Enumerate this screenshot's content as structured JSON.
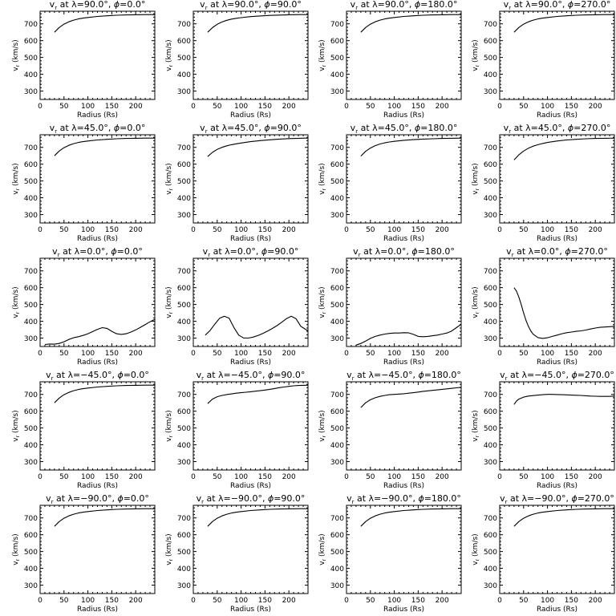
{
  "figure": {
    "ylabel_main": "v",
    "ylabel_sub": "r",
    "ylabel_rest": " (km/s)",
    "xlabel": "Radius (Rs)"
  },
  "colors": {
    "line": "#000000",
    "axis": "#000000",
    "background": "#ffffff"
  },
  "chart_data": [
    {
      "type": "line",
      "row": 0,
      "col": 0,
      "title": {
        "pre": "v",
        "sub": "r",
        "mid": " at λ=90.0°, ",
        "phi": "ϕ",
        "post": "=0.0°"
      },
      "xlim": [
        0,
        240
      ],
      "ylim": [
        250,
        775
      ],
      "xticks": [
        0,
        50,
        100,
        150,
        200
      ],
      "yticks": [
        300,
        400,
        500,
        600,
        700
      ],
      "x": [
        30,
        40,
        50,
        60,
        70,
        80,
        90,
        100,
        120,
        140,
        160,
        180,
        200,
        220,
        240
      ],
      "y": [
        650,
        678,
        698,
        712,
        722,
        729,
        734,
        738,
        744,
        748,
        751,
        753,
        754,
        755,
        755
      ]
    },
    {
      "type": "line",
      "row": 0,
      "col": 1,
      "title": {
        "pre": "v",
        "sub": "r",
        "mid": " at λ=90.0°, ",
        "phi": "ϕ",
        "post": "=90.0°"
      },
      "xlim": [
        0,
        240
      ],
      "ylim": [
        250,
        775
      ],
      "xticks": [
        0,
        50,
        100,
        150,
        200
      ],
      "yticks": [
        300,
        400,
        500,
        600,
        700
      ],
      "x": [
        30,
        40,
        50,
        60,
        70,
        80,
        90,
        100,
        120,
        140,
        160,
        180,
        200,
        220,
        240
      ],
      "y": [
        650,
        677,
        697,
        711,
        721,
        728,
        733,
        737,
        743,
        747,
        750,
        752,
        754,
        755,
        755
      ]
    },
    {
      "type": "line",
      "row": 0,
      "col": 2,
      "title": {
        "pre": "v",
        "sub": "r",
        "mid": " at λ=90.0°, ",
        "phi": "ϕ",
        "post": "=180.0°"
      },
      "xlim": [
        0,
        240
      ],
      "ylim": [
        250,
        775
      ],
      "xticks": [
        0,
        50,
        100,
        150,
        200
      ],
      "yticks": [
        300,
        400,
        500,
        600,
        700
      ],
      "x": [
        30,
        40,
        50,
        60,
        70,
        80,
        90,
        100,
        120,
        140,
        160,
        180,
        200,
        220,
        240
      ],
      "y": [
        650,
        678,
        698,
        712,
        722,
        729,
        734,
        738,
        744,
        748,
        751,
        753,
        754,
        755,
        755
      ]
    },
    {
      "type": "line",
      "row": 0,
      "col": 3,
      "title": {
        "pre": "v",
        "sub": "r",
        "mid": " at λ=90.0°, ",
        "phi": "ϕ",
        "post": "=270.0°"
      },
      "xlim": [
        0,
        240
      ],
      "ylim": [
        250,
        775
      ],
      "xticks": [
        0,
        50,
        100,
        150,
        200
      ],
      "yticks": [
        300,
        400,
        500,
        600,
        700
      ],
      "x": [
        30,
        40,
        50,
        60,
        70,
        80,
        90,
        100,
        120,
        140,
        160,
        180,
        200,
        220,
        240
      ],
      "y": [
        650,
        678,
        698,
        712,
        722,
        729,
        734,
        738,
        744,
        748,
        751,
        753,
        754,
        755,
        755
      ]
    },
    {
      "type": "line",
      "row": 1,
      "col": 0,
      "title": {
        "pre": "v",
        "sub": "r",
        "mid": " at λ=45.0°, ",
        "phi": "ϕ",
        "post": "=0.0°"
      },
      "xlim": [
        0,
        240
      ],
      "ylim": [
        250,
        775
      ],
      "xticks": [
        0,
        50,
        100,
        150,
        200
      ],
      "yticks": [
        300,
        400,
        500,
        600,
        700
      ],
      "x": [
        30,
        40,
        50,
        60,
        70,
        80,
        90,
        100,
        120,
        140,
        160,
        180,
        200,
        220,
        240
      ],
      "y": [
        650,
        678,
        698,
        712,
        722,
        729,
        734,
        738,
        744,
        748,
        751,
        753,
        754,
        755,
        755
      ]
    },
    {
      "type": "line",
      "row": 1,
      "col": 1,
      "title": {
        "pre": "v",
        "sub": "r",
        "mid": " at λ=45.0°, ",
        "phi": "ϕ",
        "post": "=90.0°"
      },
      "xlim": [
        0,
        240
      ],
      "ylim": [
        250,
        775
      ],
      "xticks": [
        0,
        50,
        100,
        150,
        200
      ],
      "yticks": [
        300,
        400,
        500,
        600,
        700
      ],
      "x": [
        30,
        40,
        50,
        60,
        70,
        80,
        90,
        100,
        120,
        140,
        160,
        180,
        200,
        220,
        240
      ],
      "y": [
        645,
        670,
        688,
        700,
        709,
        716,
        721,
        726,
        734,
        740,
        745,
        749,
        752,
        754,
        755
      ]
    },
    {
      "type": "line",
      "row": 1,
      "col": 2,
      "title": {
        "pre": "v",
        "sub": "r",
        "mid": " at λ=45.0°, ",
        "phi": "ϕ",
        "post": "=180.0°"
      },
      "xlim": [
        0,
        240
      ],
      "ylim": [
        250,
        775
      ],
      "xticks": [
        0,
        50,
        100,
        150,
        200
      ],
      "yticks": [
        300,
        400,
        500,
        600,
        700
      ],
      "x": [
        30,
        40,
        50,
        60,
        70,
        80,
        90,
        100,
        120,
        140,
        160,
        180,
        200,
        220,
        240
      ],
      "y": [
        648,
        676,
        696,
        710,
        720,
        727,
        732,
        736,
        742,
        746,
        749,
        751,
        753,
        754,
        755
      ]
    },
    {
      "type": "line",
      "row": 1,
      "col": 3,
      "title": {
        "pre": "v",
        "sub": "r",
        "mid": " at λ=45.0°, ",
        "phi": "ϕ",
        "post": "=270.0°"
      },
      "xlim": [
        0,
        240
      ],
      "ylim": [
        250,
        775
      ],
      "xticks": [
        0,
        50,
        100,
        150,
        200
      ],
      "yticks": [
        300,
        400,
        500,
        600,
        700
      ],
      "x": [
        30,
        40,
        50,
        60,
        70,
        80,
        90,
        100,
        120,
        140,
        160,
        180,
        200,
        220,
        240
      ],
      "y": [
        625,
        655,
        678,
        695,
        707,
        716,
        723,
        729,
        738,
        744,
        748,
        751,
        753,
        754,
        755
      ]
    },
    {
      "type": "line",
      "row": 2,
      "col": 0,
      "title": {
        "pre": "v",
        "sub": "r",
        "mid": " at λ=0.0°, ",
        "phi": "ϕ",
        "post": "=0.0°"
      },
      "xlim": [
        0,
        240
      ],
      "ylim": [
        250,
        775
      ],
      "xticks": [
        0,
        50,
        100,
        150,
        200
      ],
      "yticks": [
        300,
        400,
        500,
        600,
        700
      ],
      "x": [
        10,
        20,
        30,
        40,
        50,
        60,
        70,
        80,
        90,
        100,
        110,
        120,
        130,
        140,
        150,
        160,
        170,
        180,
        190,
        200,
        210,
        220,
        230,
        240
      ],
      "y": [
        262,
        265,
        264,
        268,
        278,
        292,
        302,
        308,
        316,
        326,
        339,
        352,
        362,
        358,
        340,
        326,
        322,
        326,
        336,
        349,
        364,
        381,
        397,
        412
      ]
    },
    {
      "type": "line",
      "row": 2,
      "col": 1,
      "title": {
        "pre": "v",
        "sub": "r",
        "mid": " at λ=0.0°, ",
        "phi": "ϕ",
        "post": "=90.0°"
      },
      "xlim": [
        0,
        240
      ],
      "ylim": [
        250,
        775
      ],
      "xticks": [
        0,
        50,
        100,
        150,
        200
      ],
      "yticks": [
        300,
        400,
        500,
        600,
        700
      ],
      "x": [
        25,
        35,
        45,
        55,
        65,
        75,
        85,
        95,
        105,
        115,
        125,
        135,
        145,
        155,
        165,
        175,
        185,
        195,
        205,
        215,
        225,
        235,
        240
      ],
      "y": [
        318,
        345,
        383,
        418,
        430,
        418,
        363,
        318,
        301,
        300,
        306,
        315,
        327,
        341,
        357,
        374,
        394,
        416,
        430,
        415,
        370,
        352,
        342
      ]
    },
    {
      "type": "line",
      "row": 2,
      "col": 2,
      "title": {
        "pre": "v",
        "sub": "r",
        "mid": " at λ=0.0°, ",
        "phi": "ϕ",
        "post": "=180.0°"
      },
      "xlim": [
        0,
        240
      ],
      "ylim": [
        250,
        775
      ],
      "xticks": [
        0,
        50,
        100,
        150,
        200
      ],
      "yticks": [
        300,
        400,
        500,
        600,
        700
      ],
      "x": [
        20,
        30,
        40,
        50,
        60,
        70,
        80,
        90,
        100,
        110,
        120,
        130,
        140,
        150,
        160,
        170,
        180,
        190,
        200,
        210,
        220,
        230,
        240
      ],
      "y": [
        258,
        268,
        282,
        298,
        310,
        318,
        324,
        328,
        330,
        330,
        332,
        331,
        322,
        310,
        308,
        310,
        314,
        318,
        324,
        330,
        342,
        362,
        382
      ]
    },
    {
      "type": "line",
      "row": 2,
      "col": 3,
      "title": {
        "pre": "v",
        "sub": "r",
        "mid": " at λ=0.0°, ",
        "phi": "ϕ",
        "post": "=270.0°"
      },
      "xlim": [
        0,
        240
      ],
      "ylim": [
        250,
        775
      ],
      "xticks": [
        0,
        50,
        100,
        150,
        200
      ],
      "yticks": [
        300,
        400,
        500,
        600,
        700
      ],
      "x": [
        30,
        35,
        40,
        45,
        50,
        55,
        60,
        65,
        70,
        80,
        90,
        100,
        110,
        120,
        130,
        140,
        150,
        160,
        170,
        180,
        190,
        200,
        210,
        220,
        230,
        240
      ],
      "y": [
        600,
        580,
        545,
        500,
        450,
        405,
        370,
        343,
        323,
        303,
        298,
        302,
        310,
        318,
        326,
        332,
        336,
        340,
        343,
        348,
        354,
        360,
        364,
        366,
        368,
        370
      ]
    },
    {
      "type": "line",
      "row": 3,
      "col": 0,
      "title": {
        "pre": "v",
        "sub": "r",
        "mid": " at λ=−45.0°, ",
        "phi": "ϕ",
        "post": "=0.0°"
      },
      "xlim": [
        0,
        240
      ],
      "ylim": [
        250,
        775
      ],
      "xticks": [
        0,
        50,
        100,
        150,
        200
      ],
      "yticks": [
        300,
        400,
        500,
        600,
        700
      ],
      "x": [
        30,
        40,
        50,
        60,
        70,
        80,
        90,
        100,
        120,
        140,
        160,
        180,
        200,
        220,
        240
      ],
      "y": [
        650,
        678,
        698,
        712,
        722,
        729,
        734,
        738,
        744,
        748,
        751,
        753,
        754,
        755,
        755
      ]
    },
    {
      "type": "line",
      "row": 3,
      "col": 1,
      "title": {
        "pre": "v",
        "sub": "r",
        "mid": " at λ=−45.0°, ",
        "phi": "ϕ",
        "post": "=90.0°"
      },
      "xlim": [
        0,
        240
      ],
      "ylim": [
        250,
        775
      ],
      "xticks": [
        0,
        50,
        100,
        150,
        200
      ],
      "yticks": [
        300,
        400,
        500,
        600,
        700
      ],
      "x": [
        30,
        40,
        50,
        60,
        70,
        80,
        90,
        100,
        110,
        120,
        130,
        140,
        150,
        160,
        170,
        180,
        190,
        200,
        210,
        220,
        230,
        240
      ],
      "y": [
        645,
        672,
        686,
        694,
        699,
        703,
        707,
        710,
        713,
        716,
        719,
        722,
        726,
        730,
        735,
        740,
        744,
        748,
        751,
        753,
        754,
        755
      ]
    },
    {
      "type": "line",
      "row": 3,
      "col": 2,
      "title": {
        "pre": "v",
        "sub": "r",
        "mid": " at λ=−45.0°, ",
        "phi": "ϕ",
        "post": "=180.0°"
      },
      "xlim": [
        0,
        240
      ],
      "ylim": [
        250,
        775
      ],
      "xticks": [
        0,
        50,
        100,
        150,
        200
      ],
      "yticks": [
        300,
        400,
        500,
        600,
        700
      ],
      "x": [
        30,
        40,
        50,
        60,
        70,
        80,
        90,
        100,
        110,
        120,
        130,
        140,
        150,
        160,
        170,
        180,
        190,
        200,
        210,
        220,
        230,
        240
      ],
      "y": [
        622,
        650,
        668,
        680,
        688,
        694,
        698,
        700,
        702,
        704,
        707,
        710,
        714,
        718,
        721,
        724,
        727,
        730,
        733,
        736,
        739,
        742
      ]
    },
    {
      "type": "line",
      "row": 3,
      "col": 3,
      "title": {
        "pre": "v",
        "sub": "r",
        "mid": " at λ=−45.0°, ",
        "phi": "ϕ",
        "post": "=270.0°"
      },
      "xlim": [
        0,
        240
      ],
      "ylim": [
        250,
        775
      ],
      "xticks": [
        0,
        50,
        100,
        150,
        200
      ],
      "yticks": [
        300,
        400,
        500,
        600,
        700
      ],
      "x": [
        30,
        35,
        40,
        50,
        60,
        70,
        80,
        90,
        100,
        110,
        120,
        130,
        140,
        150,
        160,
        170,
        180,
        190,
        200,
        210,
        220,
        230,
        240
      ],
      "y": [
        640,
        660,
        672,
        684,
        690,
        693,
        696,
        698,
        700,
        700,
        699,
        698,
        697,
        696,
        695,
        694,
        692,
        690,
        689,
        688,
        688,
        688,
        690
      ]
    },
    {
      "type": "line",
      "row": 4,
      "col": 0,
      "title": {
        "pre": "v",
        "sub": "r",
        "mid": " at λ=−90.0°, ",
        "phi": "ϕ",
        "post": "=0.0°"
      },
      "xlim": [
        0,
        240
      ],
      "ylim": [
        250,
        775
      ],
      "xticks": [
        0,
        50,
        100,
        150,
        200
      ],
      "yticks": [
        300,
        400,
        500,
        600,
        700
      ],
      "x": [
        30,
        40,
        50,
        60,
        70,
        80,
        90,
        100,
        120,
        140,
        160,
        180,
        200,
        220,
        240
      ],
      "y": [
        650,
        678,
        698,
        712,
        722,
        729,
        734,
        738,
        744,
        748,
        751,
        753,
        754,
        755,
        755
      ]
    },
    {
      "type": "line",
      "row": 4,
      "col": 1,
      "title": {
        "pre": "v",
        "sub": "r",
        "mid": " at λ=−90.0°, ",
        "phi": "ϕ",
        "post": "=90.0°"
      },
      "xlim": [
        0,
        240
      ],
      "ylim": [
        250,
        775
      ],
      "xticks": [
        0,
        50,
        100,
        150,
        200
      ],
      "yticks": [
        300,
        400,
        500,
        600,
        700
      ],
      "x": [
        30,
        40,
        50,
        60,
        70,
        80,
        90,
        100,
        120,
        140,
        160,
        180,
        200,
        220,
        240
      ],
      "y": [
        650,
        678,
        698,
        712,
        722,
        729,
        734,
        738,
        744,
        748,
        751,
        753,
        754,
        755,
        755
      ]
    },
    {
      "type": "line",
      "row": 4,
      "col": 2,
      "title": {
        "pre": "v",
        "sub": "r",
        "mid": " at λ=−90.0°, ",
        "phi": "ϕ",
        "post": "=180.0°"
      },
      "xlim": [
        0,
        240
      ],
      "ylim": [
        250,
        775
      ],
      "xticks": [
        0,
        50,
        100,
        150,
        200
      ],
      "yticks": [
        300,
        400,
        500,
        600,
        700
      ],
      "x": [
        30,
        40,
        50,
        60,
        70,
        80,
        90,
        100,
        120,
        140,
        160,
        180,
        200,
        220,
        240
      ],
      "y": [
        650,
        678,
        698,
        712,
        722,
        729,
        734,
        738,
        744,
        748,
        751,
        753,
        754,
        755,
        755
      ]
    },
    {
      "type": "line",
      "row": 4,
      "col": 3,
      "title": {
        "pre": "v",
        "sub": "r",
        "mid": " at λ=−90.0°, ",
        "phi": "ϕ",
        "post": "=270.0°"
      },
      "xlim": [
        0,
        240
      ],
      "ylim": [
        250,
        775
      ],
      "xticks": [
        0,
        50,
        100,
        150,
        200
      ],
      "yticks": [
        300,
        400,
        500,
        600,
        700
      ],
      "x": [
        30,
        40,
        50,
        60,
        70,
        80,
        90,
        100,
        120,
        140,
        160,
        180,
        200,
        220,
        240
      ],
      "y": [
        650,
        678,
        698,
        712,
        722,
        729,
        734,
        738,
        744,
        748,
        751,
        753,
        754,
        755,
        755
      ]
    }
  ]
}
